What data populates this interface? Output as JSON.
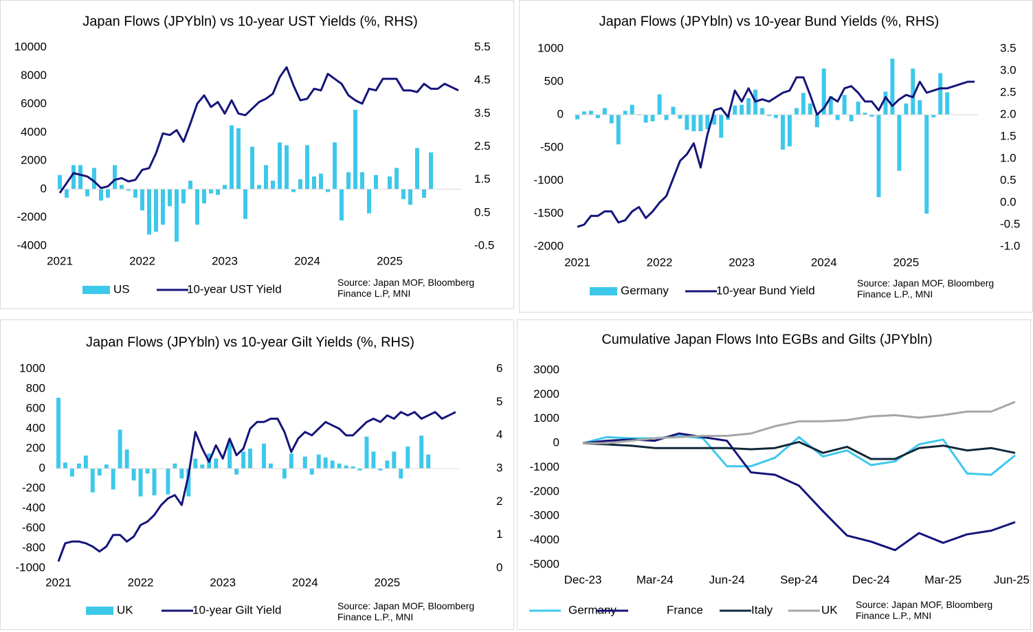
{
  "chart_data": [
    {
      "type": "bar",
      "title": "Japan Flows (JPYbln) vs 10-year UST Yields (%, RHS)",
      "categories": [
        "2021",
        null,
        null,
        null,
        null,
        null,
        null,
        null,
        null,
        null,
        null,
        null,
        "2022",
        null,
        null,
        null,
        null,
        null,
        null,
        null,
        null,
        null,
        null,
        null,
        "2023",
        null,
        null,
        null,
        null,
        null,
        null,
        null,
        null,
        null,
        null,
        null,
        "2024",
        null,
        null,
        null,
        null,
        null,
        null,
        null,
        null,
        null,
        null,
        null,
        "2025",
        null,
        null,
        null,
        null,
        null,
        null,
        null,
        null,
        null,
        null
      ],
      "series": [
        {
          "name": "US",
          "type": "bar",
          "color": "#3dc8ea",
          "values": [
            1000,
            -600,
            1700,
            1700,
            -500,
            1500,
            -800,
            -600,
            1700,
            300,
            -100,
            -600,
            -1500,
            -3200,
            -3000,
            -2500,
            -1200,
            -3700,
            -1000,
            600,
            -2500,
            -1000,
            -300,
            -400,
            300,
            4500,
            4300,
            -2100,
            3000,
            300,
            1700,
            600,
            3300,
            3100,
            -200,
            700,
            3100,
            900,
            1100,
            -200,
            3300,
            -2200,
            1200,
            5600,
            1200,
            -1700,
            1000,
            0,
            900,
            1500,
            -700,
            -1100,
            2900,
            -600,
            2600,
            null,
            null,
            null,
            null
          ]
        },
        {
          "name": "10-year UST Yield",
          "type": "line",
          "axis": "y2",
          "color": "#14147a",
          "values": [
            1.1,
            1.4,
            1.7,
            1.65,
            1.6,
            1.45,
            1.25,
            1.3,
            1.5,
            1.55,
            1.45,
            1.5,
            1.8,
            1.85,
            2.3,
            2.9,
            2.85,
            3.0,
            2.65,
            3.2,
            3.8,
            4.05,
            3.7,
            3.85,
            3.5,
            3.9,
            3.5,
            3.45,
            3.65,
            3.85,
            3.95,
            4.1,
            4.6,
            4.9,
            4.35,
            3.9,
            3.95,
            4.25,
            4.2,
            4.7,
            4.55,
            4.4,
            4.05,
            3.9,
            3.8,
            4.25,
            4.2,
            4.55,
            4.55,
            4.55,
            4.2,
            4.2,
            4.15,
            4.4,
            4.25,
            4.25,
            4.4,
            4.3,
            4.2
          ]
        }
      ],
      "ylim": [
        -4000,
        10000
      ],
      "yticks": [
        -4000,
        -2000,
        0,
        2000,
        4000,
        6000,
        8000,
        10000
      ],
      "y2lim": [
        -0.5,
        5.5
      ],
      "y2ticks": [
        -0.5,
        0.5,
        1.5,
        2.5,
        3.5,
        4.5,
        5.5
      ],
      "source": "Source: Japan MOF, Bloomberg Finance L.P, MNI"
    },
    {
      "type": "bar",
      "title": "Japan Flows (JPYbln) vs 10-year Bund Yields (%, RHS)",
      "categories": [
        "2021",
        null,
        null,
        null,
        null,
        null,
        null,
        null,
        null,
        null,
        null,
        null,
        "2022",
        null,
        null,
        null,
        null,
        null,
        null,
        null,
        null,
        null,
        null,
        null,
        "2023",
        null,
        null,
        null,
        null,
        null,
        null,
        null,
        null,
        null,
        null,
        null,
        "2024",
        null,
        null,
        null,
        null,
        null,
        null,
        null,
        null,
        null,
        null,
        null,
        "2025",
        null,
        null,
        null,
        null,
        null,
        null,
        null,
        null,
        null,
        null
      ],
      "series": [
        {
          "name": "Germany",
          "type": "bar",
          "color": "#3dc8ea",
          "values": [
            -70,
            50,
            60,
            -50,
            100,
            -130,
            -450,
            60,
            150,
            10,
            -120,
            -100,
            310,
            -80,
            120,
            -60,
            -230,
            -250,
            -250,
            -220,
            -150,
            -350,
            -80,
            140,
            150,
            250,
            380,
            100,
            -20,
            -50,
            -530,
            -480,
            100,
            330,
            170,
            -190,
            700,
            280,
            -80,
            300,
            -100,
            200,
            30,
            -30,
            -1250,
            350,
            850,
            -850,
            170,
            700,
            220,
            -1500,
            -40,
            630,
            340,
            null,
            null,
            null,
            null
          ]
        },
        {
          "name": "10-year Bund Yield",
          "type": "line",
          "axis": "y2",
          "color": "#14147a",
          "values": [
            -0.55,
            -0.5,
            -0.3,
            -0.3,
            -0.2,
            -0.2,
            -0.45,
            -0.4,
            -0.2,
            -0.1,
            -0.35,
            -0.2,
            0.0,
            0.15,
            0.55,
            0.95,
            1.1,
            1.35,
            0.8,
            1.55,
            2.1,
            2.15,
            1.95,
            2.55,
            2.3,
            2.6,
            2.3,
            2.35,
            2.3,
            2.4,
            2.5,
            2.55,
            2.85,
            2.85,
            2.45,
            2.0,
            2.15,
            2.4,
            2.3,
            2.6,
            2.65,
            2.5,
            2.3,
            2.3,
            2.1,
            2.4,
            2.2,
            2.35,
            2.45,
            2.4,
            2.75,
            2.5,
            2.55,
            2.6,
            2.6,
            2.65,
            2.7,
            2.75,
            2.75
          ]
        }
      ],
      "ylim": [
        -2000,
        1000
      ],
      "yticks": [
        -2000,
        -1500,
        -1000,
        -500,
        0,
        500,
        1000
      ],
      "y2lim": [
        -1,
        3.5
      ],
      "y2ticks": [
        {
          "value": -1,
          "label": "-1.0"
        },
        -0.5,
        {
          "value": 0,
          "label": "0.0"
        },
        0.5,
        {
          "value": 1,
          "label": "1.0"
        },
        1.5,
        {
          "value": 2,
          "label": "2.0"
        },
        2.5,
        {
          "value": 3,
          "label": "3.0"
        },
        3.5
      ],
      "source": "Source: Japan MOF, Bloomberg Finance L.P., MNI"
    },
    {
      "type": "bar",
      "title": "Japan Flows (JPYbln) vs 10-year Gilt Yields (%, RHS)",
      "categories": [
        "2021",
        null,
        null,
        null,
        null,
        null,
        null,
        null,
        null,
        null,
        null,
        null,
        "2022",
        null,
        null,
        null,
        null,
        null,
        null,
        null,
        null,
        null,
        null,
        null,
        "2023",
        null,
        null,
        null,
        null,
        null,
        null,
        null,
        null,
        null,
        null,
        null,
        "2024",
        null,
        null,
        null,
        null,
        null,
        null,
        null,
        null,
        null,
        null,
        null,
        "2025",
        null,
        null,
        null,
        null,
        null,
        null,
        null,
        null,
        null,
        null
      ],
      "series": [
        {
          "name": "UK",
          "type": "bar",
          "color": "#3dc8ea",
          "values": [
            710,
            60,
            -80,
            50,
            130,
            -240,
            -70,
            40,
            -210,
            390,
            190,
            -120,
            -280,
            -50,
            -270,
            0,
            -260,
            50,
            -100,
            -280,
            100,
            40,
            150,
            100,
            0,
            270,
            -60,
            170,
            200,
            0,
            250,
            50,
            0,
            -100,
            150,
            0,
            120,
            -60,
            140,
            110,
            80,
            50,
            30,
            20,
            -20,
            320,
            170,
            -20,
            80,
            170,
            -100,
            220,
            0,
            330,
            140,
            null,
            null,
            null,
            null
          ]
        },
        {
          "name": "10-year Gilt Yield",
          "type": "line",
          "axis": "y2",
          "color": "#14147a",
          "values": [
            0.2,
            0.75,
            0.8,
            0.8,
            0.75,
            0.65,
            0.5,
            0.65,
            1.0,
            1.0,
            0.8,
            0.95,
            1.3,
            1.4,
            1.6,
            1.9,
            2.1,
            2.2,
            1.9,
            2.8,
            4.1,
            3.6,
            3.2,
            3.7,
            3.3,
            3.9,
            3.4,
            3.6,
            4.2,
            4.4,
            4.4,
            4.5,
            4.5,
            4.1,
            3.5,
            3.9,
            4.1,
            4.0,
            4.2,
            4.4,
            4.3,
            4.2,
            4.0,
            4.0,
            4.2,
            4.4,
            4.5,
            4.4,
            4.6,
            4.5,
            4.7,
            4.6,
            4.7,
            4.5,
            4.6,
            4.7,
            4.5,
            4.6,
            4.7
          ]
        }
      ],
      "ylim": [
        -1000,
        1000
      ],
      "yticks": [
        -1000,
        -800,
        -600,
        -400,
        -200,
        0,
        200,
        400,
        600,
        800,
        1000
      ],
      "y2lim": [
        0,
        6
      ],
      "y2ticks": [
        0,
        1,
        2,
        3,
        4,
        5,
        6
      ],
      "source": "Source: Japan MOF, Bloomberg Finance L.P., MNI"
    },
    {
      "type": "line",
      "title": "Cumulative Japan Flows Into EGBs and Gilts (JPYbln)",
      "categories": [
        "Dec-23",
        null,
        null,
        "Mar-24",
        null,
        null,
        "Jun-24",
        null,
        null,
        "Sep-24",
        null,
        null,
        "Dec-24",
        null,
        null,
        "Mar-25",
        null,
        null,
        "Jun-25"
      ],
      "series": [
        {
          "name": "Germany",
          "color": "#3dc8ea",
          "values": [
            0,
            250,
            200,
            200,
            300,
            200,
            -950,
            -950,
            -600,
            250,
            -550,
            -300,
            -900,
            -750,
            -50,
            150,
            -1250,
            -1300,
            -500
          ]
        },
        {
          "name": "France",
          "color": "#14147a",
          "values": [
            0,
            100,
            150,
            100,
            400,
            250,
            100,
            -1200,
            -1300,
            -1750,
            -2800,
            -3800,
            -4050,
            -4400,
            -3700,
            -4100,
            -3750,
            -3600,
            -3250
          ]
        },
        {
          "name": "Italy",
          "color": "#10283a",
          "values": [
            0,
            -50,
            -100,
            -200,
            -200,
            -200,
            -200,
            -250,
            -200,
            50,
            -400,
            -150,
            -650,
            -650,
            -200,
            -100,
            -300,
            -200,
            -400
          ]
        },
        {
          "name": "UK",
          "color": "#a6a6a6",
          "values": [
            0,
            0,
            100,
            200,
            250,
            300,
            300,
            400,
            700,
            900,
            900,
            950,
            1100,
            1150,
            1050,
            1150,
            1300,
            1300,
            1700
          ]
        }
      ],
      "ylim": [
        -5000,
        3000
      ],
      "yticks": [
        -5000,
        -4000,
        -3000,
        -2000,
        -1000,
        0,
        1000,
        2000,
        3000
      ],
      "source": "Source: Japan MOF, Bloomberg Finance L.P., MNI"
    }
  ]
}
